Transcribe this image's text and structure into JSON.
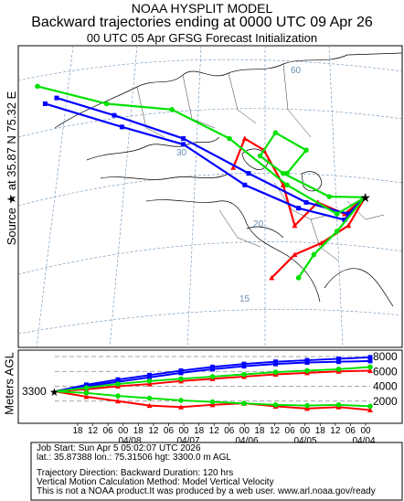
{
  "header": {
    "line1": "NOAA HYSPLIT MODEL",
    "line2": "Backward trajectories ending at 0000 UTC 09 Apr 26",
    "line3": "00 UTC 05 Apr    GFSG  Forecast Initialization"
  },
  "side_label": "Source ★ at    35.87 N    75.32 E",
  "map": {
    "lat_labels": [
      "60",
      "30",
      "20",
      "15"
    ],
    "colors": {
      "red": "#ff0000",
      "blue": "#0000ff",
      "green": "#00e000",
      "border": "#000000",
      "grid": "#6a8fb0"
    }
  },
  "height_panel": {
    "ylabel": "Meters AGL",
    "source_height": "3300",
    "yticks": [
      "8000",
      "6000",
      "4000",
      "2000"
    ],
    "hour_ticks": [
      "18",
      "12",
      "06",
      "00",
      "18",
      "12",
      "06",
      "00",
      "18",
      "12",
      "06",
      "00",
      "18",
      "12",
      "06",
      "00",
      "18",
      "12",
      "06",
      "00"
    ],
    "date_ticks": [
      "04/08",
      "04/07",
      "04/06",
      "04/05",
      "04/04"
    ]
  },
  "footer": {
    "job": "Job Start: Sun Apr  5 05:02:07 UTC 2026",
    "loc": "lat.: 35.87388   lon.: 75.31506   hgt: 3300.0 m AGL",
    "direction": "Trajectory Direction: Backward        Duration: 120 hrs",
    "method": "Vertical Motion Calculation Method: Model Vertical Velocity",
    "disclaimer": "This is not a NOAA product.It was produced by a web user. www.arl.noaa.gov/ready"
  },
  "chart_data": [
    {
      "type": "line",
      "title": "Backward trajectories ending at 0000 UTC 09 Apr 26",
      "source": {
        "lat": 35.87,
        "lon": 75.32,
        "height_m": 3300
      },
      "series": [
        {
          "name": "",
          "color": "red",
          "values": [
            [
              75.32,
              35.87
            ],
            [
              70,
              33
            ],
            [
              63,
              35
            ],
            [
              57,
              31
            ],
            [
              54,
              38
            ],
            [
              49,
              44
            ],
            [
              44,
              46
            ],
            [
              41,
              41
            ]
          ]
        },
        {
          "name": "",
          "color": "red",
          "values": [
            [
              75.32,
              35.87
            ],
            [
              71,
              31
            ],
            [
              64,
              28
            ],
            [
              57,
              26
            ],
            [
              51,
              22
            ]
          ]
        },
        {
          "name": "",
          "color": "blue",
          "values": [
            [
              75.32,
              35.87
            ],
            [
              70,
              32
            ],
            [
              58,
              34
            ],
            [
              44,
              38
            ],
            [
              28,
              45
            ],
            [
              12,
              48
            ],
            [
              -8,
              52
            ]
          ]
        },
        {
          "name": "",
          "color": "blue",
          "values": [
            [
              75.32,
              35.87
            ],
            [
              71,
              33
            ],
            [
              60,
              35
            ],
            [
              45,
              40
            ],
            [
              28,
              46
            ],
            [
              10,
              50
            ],
            [
              -5,
              53
            ]
          ]
        },
        {
          "name": "",
          "color": "green",
          "values": [
            [
              75.32,
              35.87
            ],
            [
              68,
              33
            ],
            [
              55,
              38
            ],
            [
              40,
              46
            ],
            [
              25,
              51
            ],
            [
              8,
              52
            ],
            [
              -10,
              55
            ]
          ]
        },
        {
          "name": "",
          "color": "green",
          "values": [
            [
              75.32,
              35.87
            ],
            [
              68,
              30
            ],
            [
              62,
              26
            ],
            [
              58,
              22
            ]
          ]
        },
        {
          "name": "",
          "color": "green",
          "values": [
            [
              75.32,
              35.87
            ],
            [
              66,
              36
            ],
            [
              54,
              40
            ],
            [
              48,
              43
            ],
            [
              52,
              47
            ],
            [
              60,
              44
            ],
            [
              55,
              40
            ]
          ]
        }
      ]
    },
    {
      "type": "line",
      "ylabel": "Meters AGL",
      "yticks": [
        2000,
        4000,
        6000,
        8000
      ],
      "x": [
        120,
        108,
        96,
        84,
        72,
        60,
        48,
        36,
        24,
        12,
        0
      ],
      "series": [
        {
          "name": "",
          "color": "blue",
          "values": [
            3300,
            4200,
            4900,
            5500,
            6100,
            6600,
            7000,
            7300,
            7500,
            7700,
            7900
          ]
        },
        {
          "name": "",
          "color": "blue",
          "values": [
            3300,
            4000,
            4600,
            5200,
            5800,
            6300,
            6700,
            7000,
            7200,
            7300,
            7400
          ]
        },
        {
          "name": "",
          "color": "red",
          "values": [
            3300,
            2600,
            2000,
            1400,
            1200,
            1500,
            1700,
            1300,
            1000,
            1200,
            800
          ]
        },
        {
          "name": "",
          "color": "red",
          "values": [
            3300,
            3600,
            4000,
            4300,
            4700,
            5000,
            5300,
            5600,
            5800,
            6000,
            6100
          ]
        },
        {
          "name": "",
          "color": "green",
          "values": [
            3300,
            3100,
            2700,
            2400,
            2100,
            1900,
            1700,
            1500,
            1400,
            1500,
            1300
          ]
        },
        {
          "name": "",
          "color": "green",
          "values": [
            3300,
            3800,
            4300,
            4700,
            5000,
            5300,
            5600,
            5900,
            6100,
            6300,
            6600
          ]
        }
      ]
    }
  ]
}
